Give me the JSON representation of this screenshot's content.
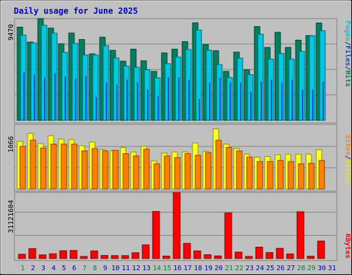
{
  "title": "Daily usage for June 2025",
  "right_labels": {
    "panel1": [
      {
        "text": "Pages",
        "color": "#00c8e0"
      },
      {
        "text": "/",
        "color": "#303030"
      },
      {
        "text": "Files",
        "color": "#0050e0"
      },
      {
        "text": "/",
        "color": "#303030"
      },
      {
        "text": "Hits",
        "color": "#008060"
      }
    ],
    "panel2": [
      {
        "text": "Sites",
        "color": "#ff8000"
      },
      {
        "text": "/",
        "color": "#303030"
      },
      {
        "text": "Visits",
        "color": "#e8e800"
      }
    ],
    "panel3": [
      {
        "text": "KBytes",
        "color": "#ff0000"
      }
    ]
  },
  "colors": {
    "hits": "#008060",
    "files": "#0050e0",
    "pages": "#00c8e0",
    "visits": "#ffff20",
    "sites": "#ff8000",
    "kbytes": "#ff0000",
    "title": "#0000c0",
    "weekend_day": "#008040",
    "weekday": "#0000c0"
  },
  "chart_data": [
    {
      "type": "bar",
      "title": "Daily usage for June 2025",
      "categories": [
        "1",
        "2",
        "3",
        "4",
        "5",
        "6",
        "7",
        "8",
        "9",
        "10",
        "11",
        "12",
        "13",
        "14",
        "15",
        "16",
        "17",
        "18",
        "19",
        "20",
        "21",
        "22",
        "23",
        "24",
        "25",
        "26",
        "27",
        "28",
        "29",
        "30",
        "31"
      ],
      "y_tick_label": "9470",
      "ylim": [
        0,
        10000
      ],
      "grid": true,
      "series": [
        {
          "name": "Hits",
          "values": [
            9160,
            7690,
            10000,
            9060,
            7520,
            8580,
            7940,
            6530,
            8170,
            6880,
            5810,
            6990,
            5850,
            4810,
            6620,
            6990,
            7730,
            9580,
            7450,
            6840,
            4810,
            6700,
            4980,
            9210,
            7160,
            8650,
            7160,
            7880,
            8330,
            9570,
            null
          ]
        },
        {
          "name": "Files",
          "values": [
            4700,
            4500,
            4200,
            4600,
            4300,
            4100,
            4400,
            2300,
            3700,
            3500,
            4000,
            3700,
            3000,
            2400,
            4200,
            4200,
            4000,
            2100,
            3700,
            4200,
            3700,
            3700,
            2800,
            3800,
            4000,
            3700,
            4000,
            3000,
            3000,
            3800,
            null
          ]
        },
        {
          "name": "Pages",
          "values": [
            8380,
            7600,
            9340,
            8570,
            6680,
            7560,
            6420,
            6420,
            7320,
            6120,
            5330,
            5210,
            4970,
            4180,
            5570,
            6220,
            6960,
            8870,
            6900,
            5480,
            4200,
            6110,
            4490,
            8460,
            6010,
            6570,
            6010,
            6770,
            8310,
            8800,
            null
          ]
        }
      ]
    },
    {
      "type": "bar",
      "categories": [
        "1",
        "2",
        "3",
        "4",
        "5",
        "6",
        "7",
        "8",
        "9",
        "10",
        "11",
        "12",
        "13",
        "14",
        "15",
        "16",
        "17",
        "18",
        "19",
        "20",
        "21",
        "22",
        "23",
        "24",
        "25",
        "26",
        "27",
        "28",
        "29",
        "30",
        "31"
      ],
      "y_tick_label": "1066",
      "ylim": [
        0,
        1150
      ],
      "grid": true,
      "series": [
        {
          "name": "Visits",
          "values": [
            851,
            990,
            810,
            950,
            890,
            880,
            770,
            840,
            700,
            680,
            740,
            660,
            760,
            500,
            640,
            660,
            660,
            820,
            670,
            1070,
            800,
            720,
            620,
            570,
            580,
            610,
            620,
            620,
            620,
            700,
            null
          ]
        },
        {
          "name": "Sites",
          "values": [
            760,
            870,
            730,
            800,
            800,
            800,
            680,
            720,
            680,
            690,
            630,
            590,
            710,
            450,
            590,
            560,
            630,
            600,
            650,
            870,
            740,
            680,
            570,
            490,
            490,
            510,
            490,
            450,
            460,
            510,
            null
          ]
        }
      ]
    },
    {
      "type": "bar",
      "categories": [
        "1",
        "2",
        "3",
        "4",
        "5",
        "6",
        "7",
        "8",
        "9",
        "10",
        "11",
        "12",
        "13",
        "14",
        "15",
        "16",
        "17",
        "18",
        "19",
        "20",
        "21",
        "22",
        "23",
        "24",
        "25",
        "26",
        "27",
        "28",
        "29",
        "30",
        "31"
      ],
      "y_tick_label": "31121604",
      "ylim": [
        0,
        43500000
      ],
      "grid": true,
      "series": [
        {
          "name": "KBytes",
          "values": [
            2800000,
            6500000,
            2400000,
            3100000,
            5100000,
            5300000,
            700000,
            5000000,
            2000000,
            1900000,
            1900000,
            3800000,
            9000000,
            31000000,
            1600000,
            43500000,
            10000000,
            5000000,
            2500000,
            1700000,
            30000000,
            4200000,
            1300000,
            7500000,
            3900000,
            6700000,
            3000000,
            30800000,
            1500000,
            11500000,
            null
          ]
        }
      ]
    }
  ]
}
